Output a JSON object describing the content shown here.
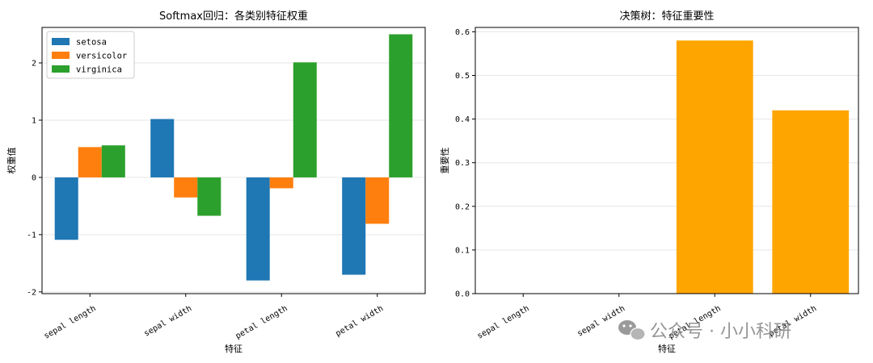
{
  "chart_data": [
    {
      "type": "bar",
      "title": "Softmax回归：各类别特征权重",
      "xlabel": "特征",
      "ylabel": "权重值",
      "categories": [
        "sepal length",
        "sepal width",
        "petal length",
        "petal width"
      ],
      "series": [
        {
          "name": "setosa",
          "color": "#1f77b4",
          "values": [
            -1.09,
            1.02,
            -1.8,
            -1.7
          ]
        },
        {
          "name": "versicolor",
          "color": "#ff7f0e",
          "values": [
            0.53,
            -0.35,
            -0.19,
            -0.81
          ]
        },
        {
          "name": "virginica",
          "color": "#2ca02c",
          "values": [
            0.56,
            -0.67,
            2.01,
            2.5
          ]
        }
      ],
      "ylim": [
        -2.03,
        2.62
      ],
      "yticks": [
        -2,
        -1,
        0,
        1,
        2
      ],
      "grid": "y",
      "legend": "top-left"
    },
    {
      "type": "bar",
      "title": "决策树：特征重要性",
      "xlabel": "特征",
      "ylabel": "重要性",
      "categories": [
        "sepal length",
        "sepal width",
        "petal length",
        "petal width"
      ],
      "values": [
        0.0,
        0.0,
        0.58,
        0.42
      ],
      "color": "#ffa500",
      "ylim": [
        0,
        0.61
      ],
      "yticks": [
        0.0,
        0.1,
        0.2,
        0.3,
        0.4,
        0.5,
        0.6
      ],
      "grid": "y"
    }
  ],
  "watermark": {
    "text": "公众号 · 小小科研",
    "icon": "wechat-icon"
  }
}
